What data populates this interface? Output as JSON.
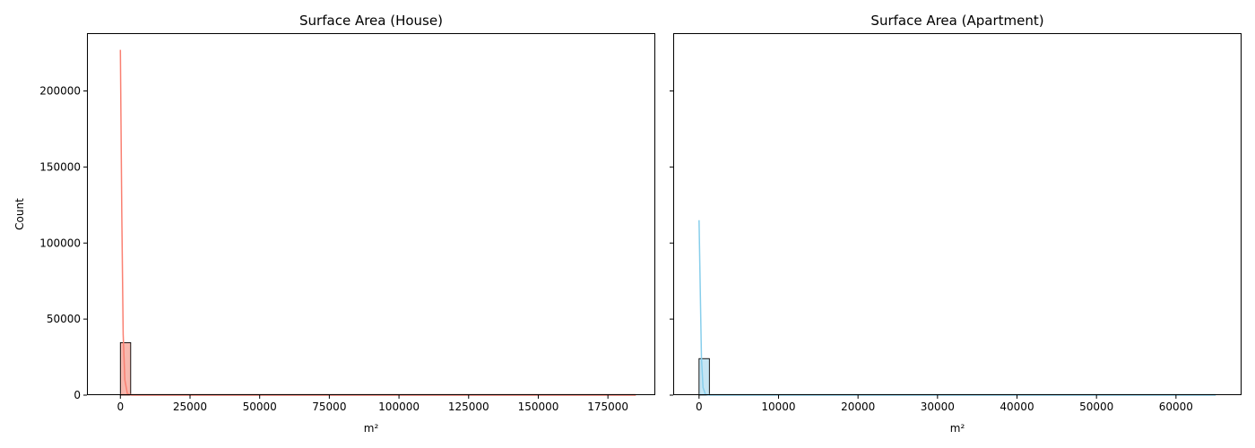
{
  "chart_data": [
    {
      "type": "histogram",
      "title": "Surface Area (House)",
      "xlabel": "m²",
      "ylabel": "Count",
      "xlim": [
        -12000,
        192000
      ],
      "ylim": [
        0,
        238000
      ],
      "xticks": [
        0,
        25000,
        50000,
        75000,
        100000,
        125000,
        150000,
        175000
      ],
      "yticks": [
        0,
        50000,
        100000,
        150000,
        200000
      ],
      "bar_color": "#f8a196",
      "bar_fill": "#f7b8ae",
      "line_color": "#fa8072",
      "bins": [
        {
          "x0": 0,
          "x1": 3700,
          "count": 34500
        }
      ],
      "baseline": {
        "x0": 0,
        "x1": 185000
      },
      "kde": [
        [
          0,
          227000
        ],
        [
          500,
          120000
        ],
        [
          1000,
          40000
        ],
        [
          1600,
          10000
        ],
        [
          2500,
          1000
        ],
        [
          4000,
          0
        ],
        [
          185000,
          0
        ]
      ]
    },
    {
      "type": "histogram",
      "title": "Surface Area (Apartment)",
      "xlabel": "m²",
      "ylabel": "",
      "xlim": [
        -3250,
        68250
      ],
      "ylim": [
        0,
        238000
      ],
      "xticks": [
        0,
        10000,
        20000,
        30000,
        40000,
        50000,
        60000
      ],
      "yticks": [
        0,
        50000,
        100000,
        150000,
        200000
      ],
      "bar_color": "#9cd3ea",
      "bar_fill": "#c5e5f3",
      "line_color": "#87ceeb",
      "bins": [
        {
          "x0": 0,
          "x1": 1300,
          "count": 24000
        }
      ],
      "baseline": {
        "x0": 0,
        "x1": 65000
      },
      "kde": [
        [
          0,
          115000
        ],
        [
          150,
          70000
        ],
        [
          300,
          25000
        ],
        [
          500,
          5000
        ],
        [
          800,
          500
        ],
        [
          1300,
          0
        ],
        [
          65000,
          0
        ]
      ]
    }
  ]
}
